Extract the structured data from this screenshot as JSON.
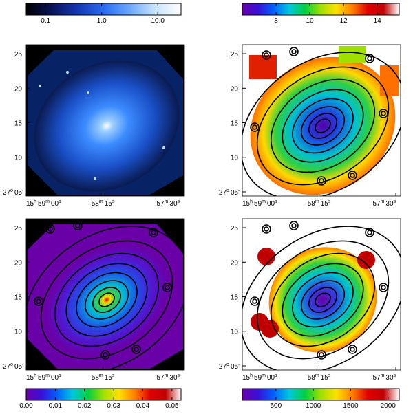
{
  "colorbars": [
    {
      "position": "top-left",
      "log": true,
      "lim": [
        0.045,
        26
      ],
      "ticks": [
        0.1,
        {
          "value": 1,
          "label": "1.0"
        },
        {
          "value": 10,
          "label": "10.0"
        }
      ],
      "colors": [
        "#000000",
        "#08145a",
        "#1438b4",
        "#2a6cf0",
        "#6aa8ff",
        "#c8e4ff",
        "#ffffff"
      ]
    },
    {
      "position": "top-right",
      "log": false,
      "lim": [
        6,
        15.3
      ],
      "ticks": [
        8,
        10,
        12,
        14
      ],
      "colors": [
        "#6a00a8",
        "#3a10d8",
        "#0060ff",
        "#00c8e0",
        "#00d040",
        "#a0e000",
        "#ffe000",
        "#ff8000",
        "#e00000",
        "#c00000",
        "#ffffff"
      ]
    },
    {
      "position": "bottom-left",
      "log": false,
      "lim": [
        0,
        0.0531
      ],
      "ticks": [
        {
          "value": 0,
          "label": "0.00"
        },
        {
          "value": 0.01,
          "label": "0.01"
        },
        {
          "value": 0.02,
          "label": "0.02"
        },
        {
          "value": 0.03,
          "label": "0.03"
        },
        {
          "value": 0.04,
          "label": "0.04"
        },
        {
          "value": 0.05,
          "label": "0.05"
        }
      ],
      "colors": [
        "#6a00a8",
        "#3a10d8",
        "#0060ff",
        "#00c8e0",
        "#00d040",
        "#a0e000",
        "#ffe000",
        "#ff8000",
        "#e00000",
        "#c00000",
        "#ffffff"
      ]
    },
    {
      "position": "bottom-right",
      "log": false,
      "lim": [
        50,
        2150
      ],
      "ticks": [
        500,
        1000,
        1500,
        2000
      ],
      "colors": [
        "#6a00a8",
        "#3a10d8",
        "#0060ff",
        "#00c8e0",
        "#00d040",
        "#a0e000",
        "#ffe000",
        "#ff8000",
        "#e00000",
        "#c00000",
        "#ffffff"
      ]
    }
  ],
  "axes": {
    "ylim": [
      4.4,
      26.3
    ],
    "yticks": [
      25,
      20,
      15,
      10,
      {
        "value": 5,
        "label": "27",
        "sup": "o",
        "rest": "05'"
      }
    ],
    "xlim": [
      0,
      92.8
    ],
    "xticks": [
      {
        "value": 0,
        "parts": [
          "15",
          "h",
          "59",
          "m",
          "00",
          "s"
        ]
      },
      {
        "value": 45,
        "parts": [
          "58",
          "m",
          "15",
          "s"
        ]
      },
      {
        "value": 90,
        "parts": [
          "57",
          "m",
          "30",
          "s"
        ]
      }
    ]
  }
}
